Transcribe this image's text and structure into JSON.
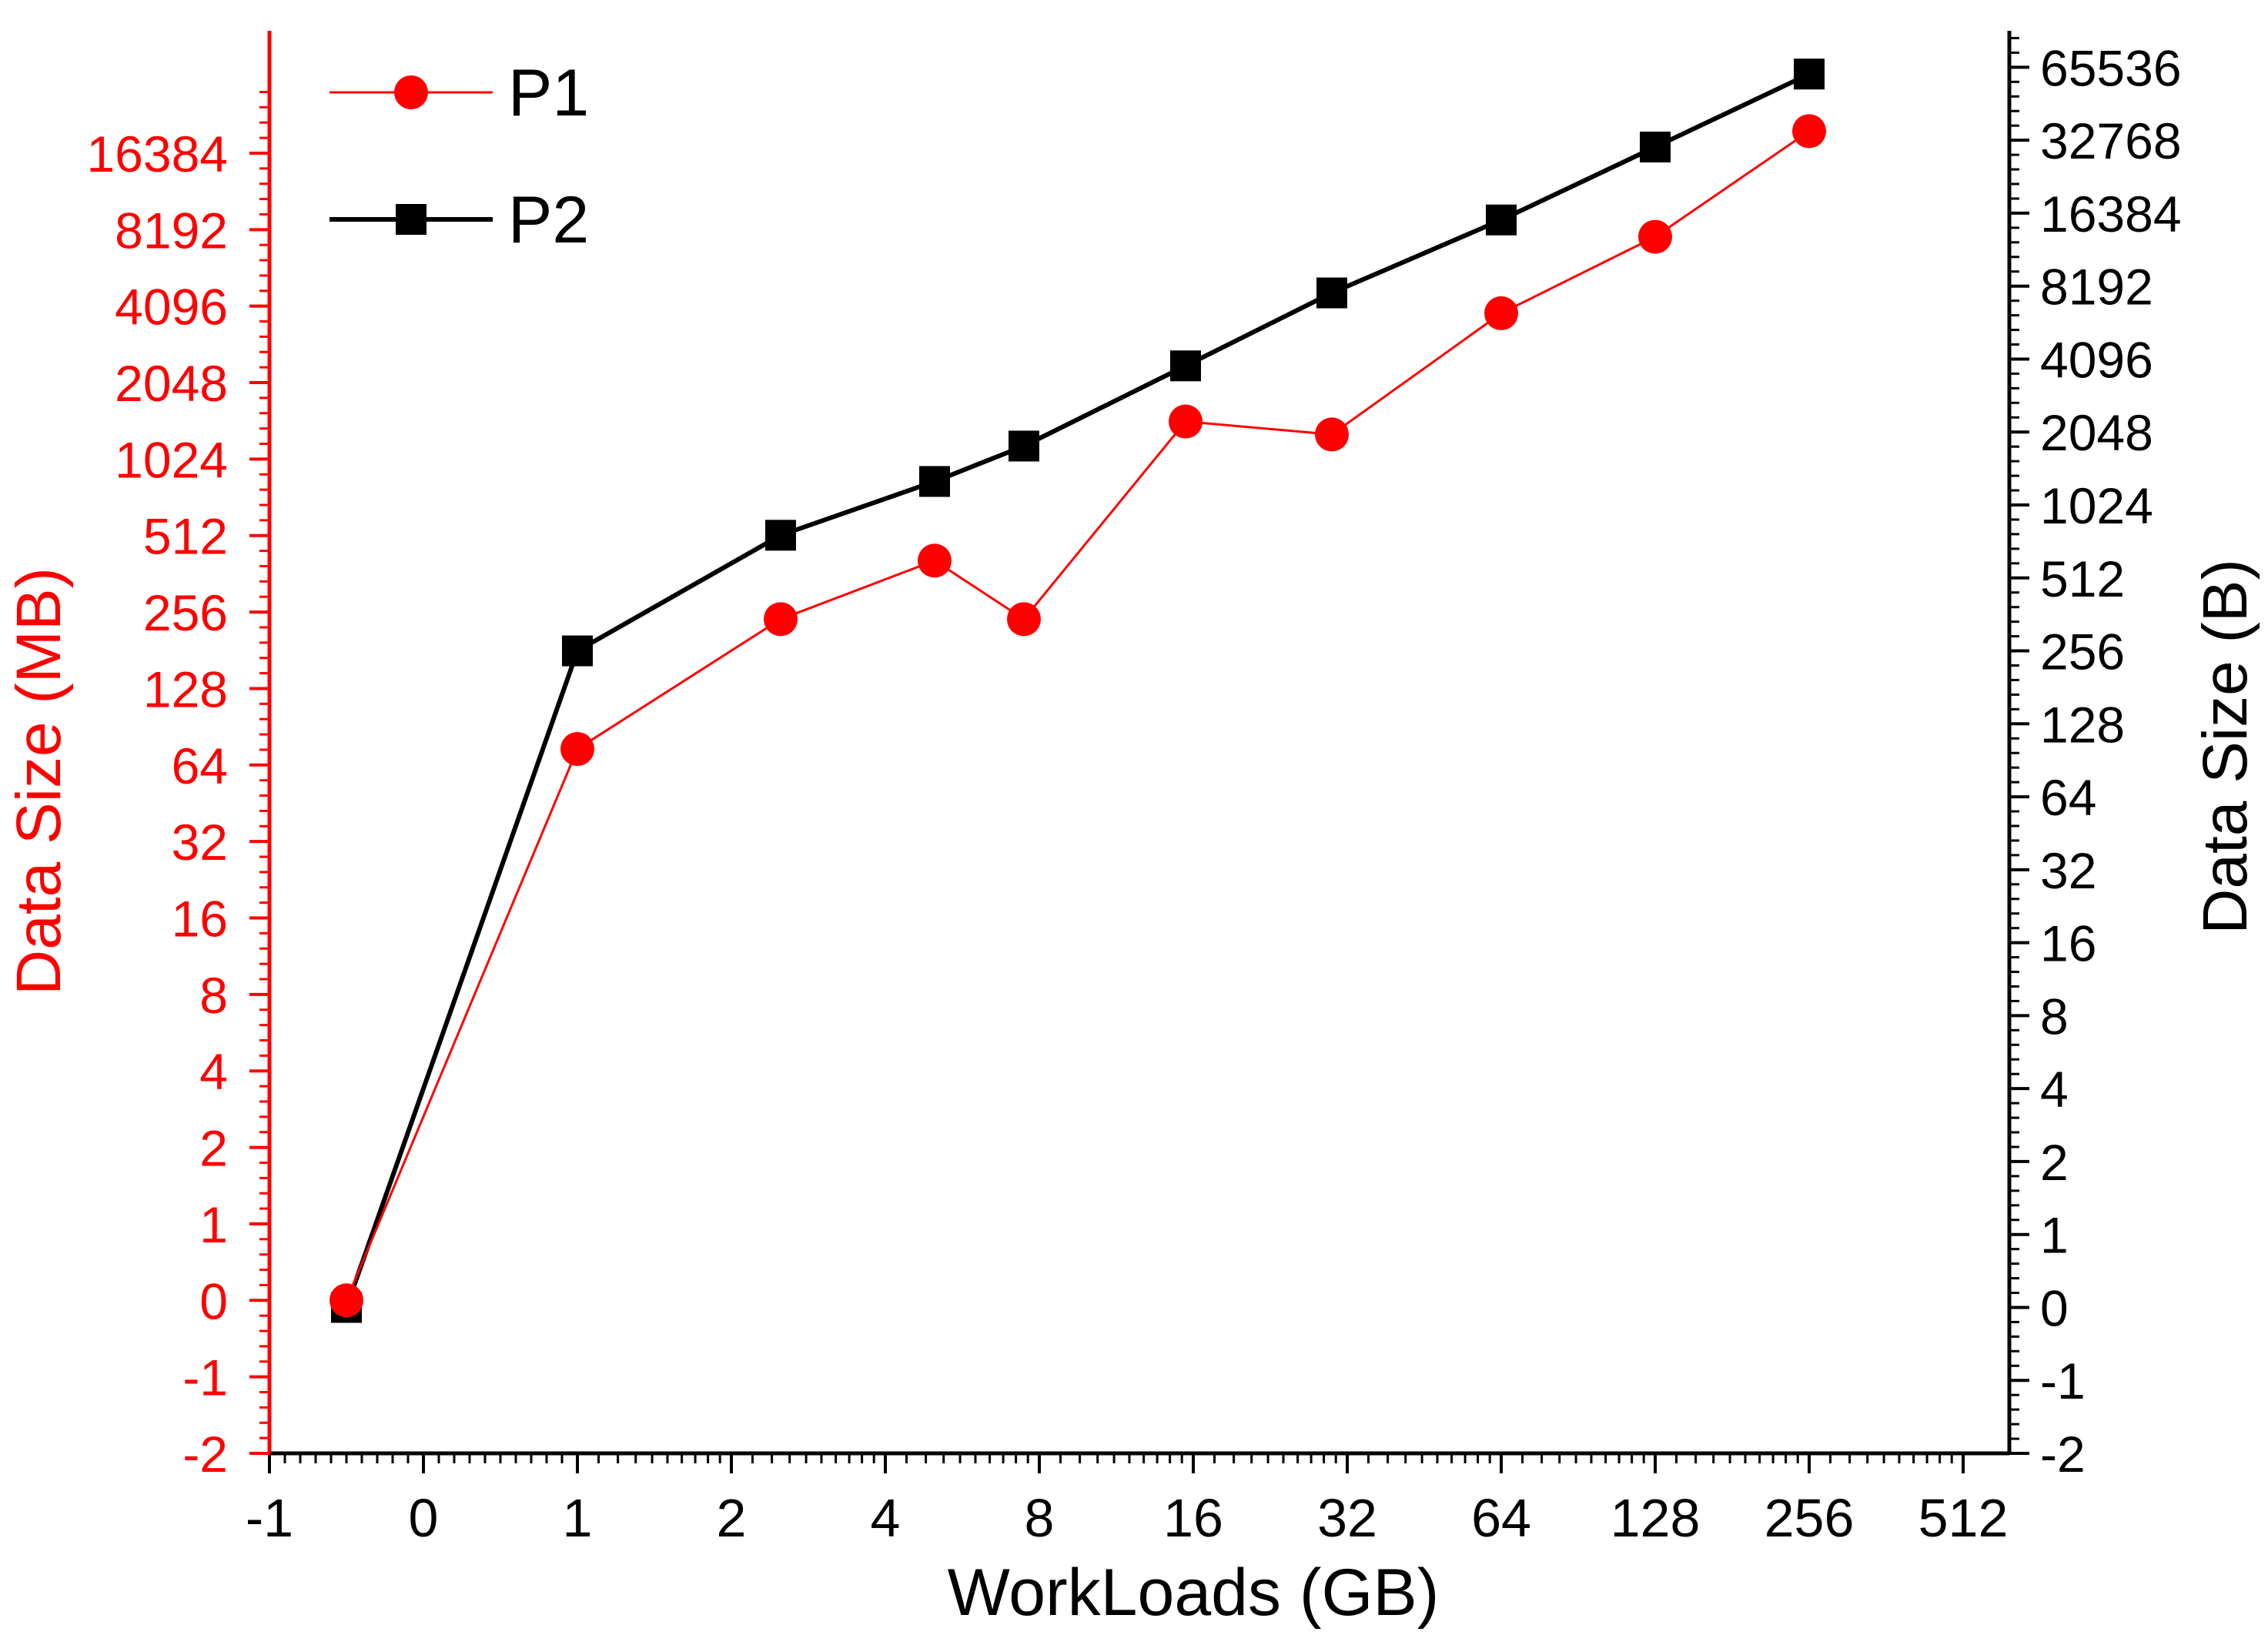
{
  "chart_data": {
    "type": "line",
    "xlabel": "WorkLoads (GB)",
    "ylabel_left": "Data Size (MB)",
    "ylabel_right": "Data Size (B)",
    "x_scale": "log2 (index)",
    "x_ticks": [
      "-1",
      "0",
      "1",
      "2",
      "4",
      "8",
      "16",
      "32",
      "64",
      "128",
      "256",
      "512"
    ],
    "x_index_range": [
      -1,
      10.3
    ],
    "y_left_ticks": [
      "-2",
      "-1",
      "0",
      "1",
      "2",
      "4",
      "8",
      "16",
      "32",
      "64",
      "128",
      "256",
      "512",
      "1024",
      "2048",
      "4096",
      "8192",
      "16384"
    ],
    "y_left_index_range": [
      -2,
      16.6
    ],
    "y_right_ticks": [
      "-2",
      "-1",
      "0",
      "1",
      "2",
      "4",
      "8",
      "16",
      "32",
      "64",
      "128",
      "256",
      "512",
      "1024",
      "2048",
      "4096",
      "8192",
      "16384",
      "32768",
      "65536"
    ],
    "y_right_index_range": [
      -2,
      17.5
    ],
    "series": [
      {
        "name": "P1",
        "axis": "left",
        "color": "#ff0000",
        "marker": "circle",
        "x_index": [
          -0.5,
          1.0,
          2.32,
          3.32,
          3.9,
          4.95,
          5.9,
          7.0,
          8.0,
          9.0
        ],
        "values": [
          0,
          74,
          240,
          408,
          240,
          1440,
          1280,
          3840,
          7680,
          20000
        ]
      },
      {
        "name": "P2",
        "axis": "right",
        "color": "#000000",
        "marker": "square",
        "x_index": [
          -0.5,
          1.0,
          2.32,
          3.32,
          3.9,
          4.95,
          5.9,
          7.0,
          8.0,
          9.0
        ],
        "values": [
          0,
          256,
          768,
          1280,
          1792,
          3840,
          7680,
          15360,
          30720,
          61440
        ]
      }
    ],
    "legend": {
      "position": "top-left",
      "entries": [
        "P1",
        "P2"
      ]
    },
    "colors": {
      "left_axis": "#ff0000",
      "right_axis": "#000000",
      "background": "#ffffff"
    }
  }
}
